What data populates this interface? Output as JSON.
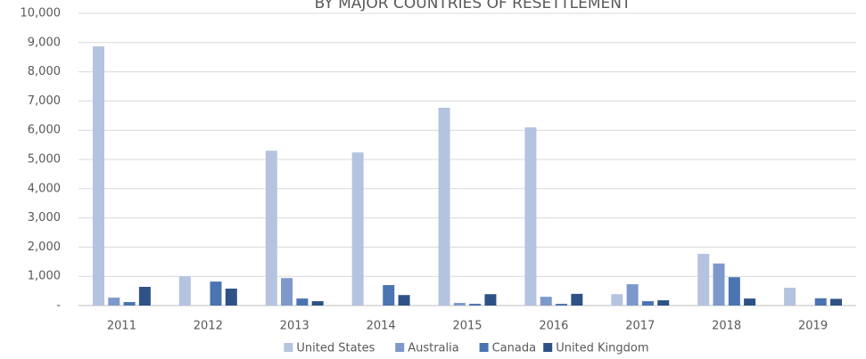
{
  "chart_data": {
    "type": "bar",
    "title": "BY MAJOR COUNTRIES OF RESETTLEMENT",
    "categories": [
      "2011",
      "2012",
      "2013",
      "2014",
      "2015",
      "2016",
      "2017",
      "2018",
      "2019"
    ],
    "series": [
      {
        "name": "United States",
        "color": "#b4c4e0",
        "values": [
          8870,
          1000,
          5300,
          5240,
          6770,
          6100,
          390,
          1770,
          610
        ]
      },
      {
        "name": "Australia",
        "color": "#7d98cb",
        "values": [
          270,
          0,
          940,
          0,
          90,
          300,
          730,
          1440,
          0
        ]
      },
      {
        "name": "Canada",
        "color": "#4a74b2",
        "values": [
          120,
          820,
          240,
          700,
          60,
          60,
          150,
          970,
          250
        ]
      },
      {
        "name": "United Kingdom",
        "color": "#2f5286",
        "values": [
          640,
          580,
          150,
          360,
          390,
          400,
          180,
          240,
          230
        ]
      }
    ],
    "ylim": [
      0,
      10000
    ],
    "yticks": [
      {
        "value": 0,
        "label": "-"
      },
      {
        "value": 1000,
        "label": "1,000"
      },
      {
        "value": 2000,
        "label": "2,000"
      },
      {
        "value": 3000,
        "label": "3,000"
      },
      {
        "value": 4000,
        "label": "4,000"
      },
      {
        "value": 5000,
        "label": "5,000"
      },
      {
        "value": 6000,
        "label": "6,000"
      },
      {
        "value": 7000,
        "label": "7,000"
      },
      {
        "value": 8000,
        "label": "8,000"
      },
      {
        "value": 9000,
        "label": "9,000"
      },
      {
        "value": 10000,
        "label": "10,000"
      }
    ],
    "grid": true
  }
}
